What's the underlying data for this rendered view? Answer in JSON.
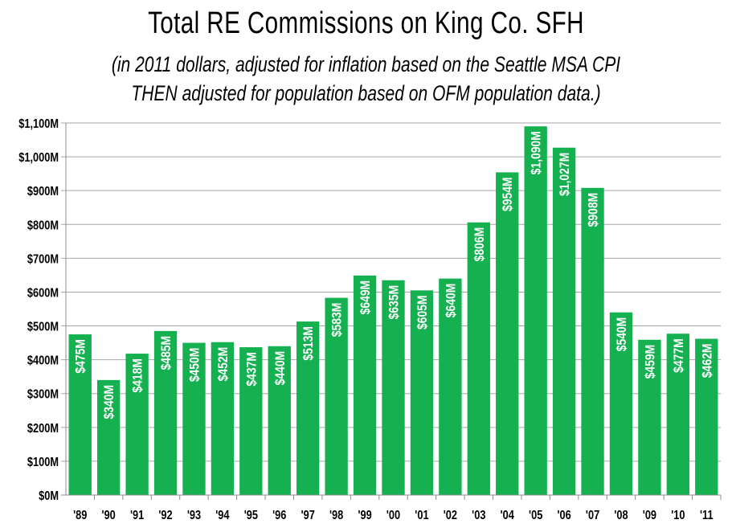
{
  "chart_data": {
    "type": "bar",
    "title": "Total RE Commissions on King Co. SFH",
    "subtitle_lines": [
      "(in 2011 dollars, adjusted for inflation based on the Seattle MSA CPI",
      "THEN adjusted for population based on OFM population data.)"
    ],
    "categories": [
      "'89",
      "'90",
      "'91",
      "'92",
      "'93",
      "'94",
      "'95",
      "'96",
      "'97",
      "'98",
      "'99",
      "'00",
      "'01",
      "'02",
      "'03",
      "'04",
      "'05",
      "'06",
      "'07",
      "'08",
      "'09",
      "'10",
      "'11"
    ],
    "values": [
      475,
      340,
      418,
      485,
      450,
      452,
      437,
      440,
      513,
      583,
      649,
      635,
      605,
      640,
      806,
      954,
      1090,
      1027,
      908,
      540,
      459,
      477,
      462
    ],
    "data_labels": [
      "$475M",
      "$340M",
      "$418M",
      "$485M",
      "$450M",
      "$452M",
      "$437M",
      "$440M",
      "$513M",
      "$583M",
      "$649M",
      "$635M",
      "$605M",
      "$640M",
      "$806M",
      "$954M",
      "$1,090M",
      "$1,027M",
      "$908M",
      "$540M",
      "$459M",
      "$477M",
      "$462M"
    ],
    "y_ticks": [
      0,
      100,
      200,
      300,
      400,
      500,
      600,
      700,
      800,
      900,
      1000,
      1100
    ],
    "y_tick_labels": [
      "$0M",
      "$100M",
      "$200M",
      "$300M",
      "$400M",
      "$500M",
      "$600M",
      "$700M",
      "$800M",
      "$900M",
      "$1,000M",
      "$1,100M"
    ],
    "ylim": [
      0,
      1100
    ],
    "xlabel": "",
    "ylabel": "",
    "grid": true,
    "legend": "none",
    "bar_color": "#15b04f"
  }
}
